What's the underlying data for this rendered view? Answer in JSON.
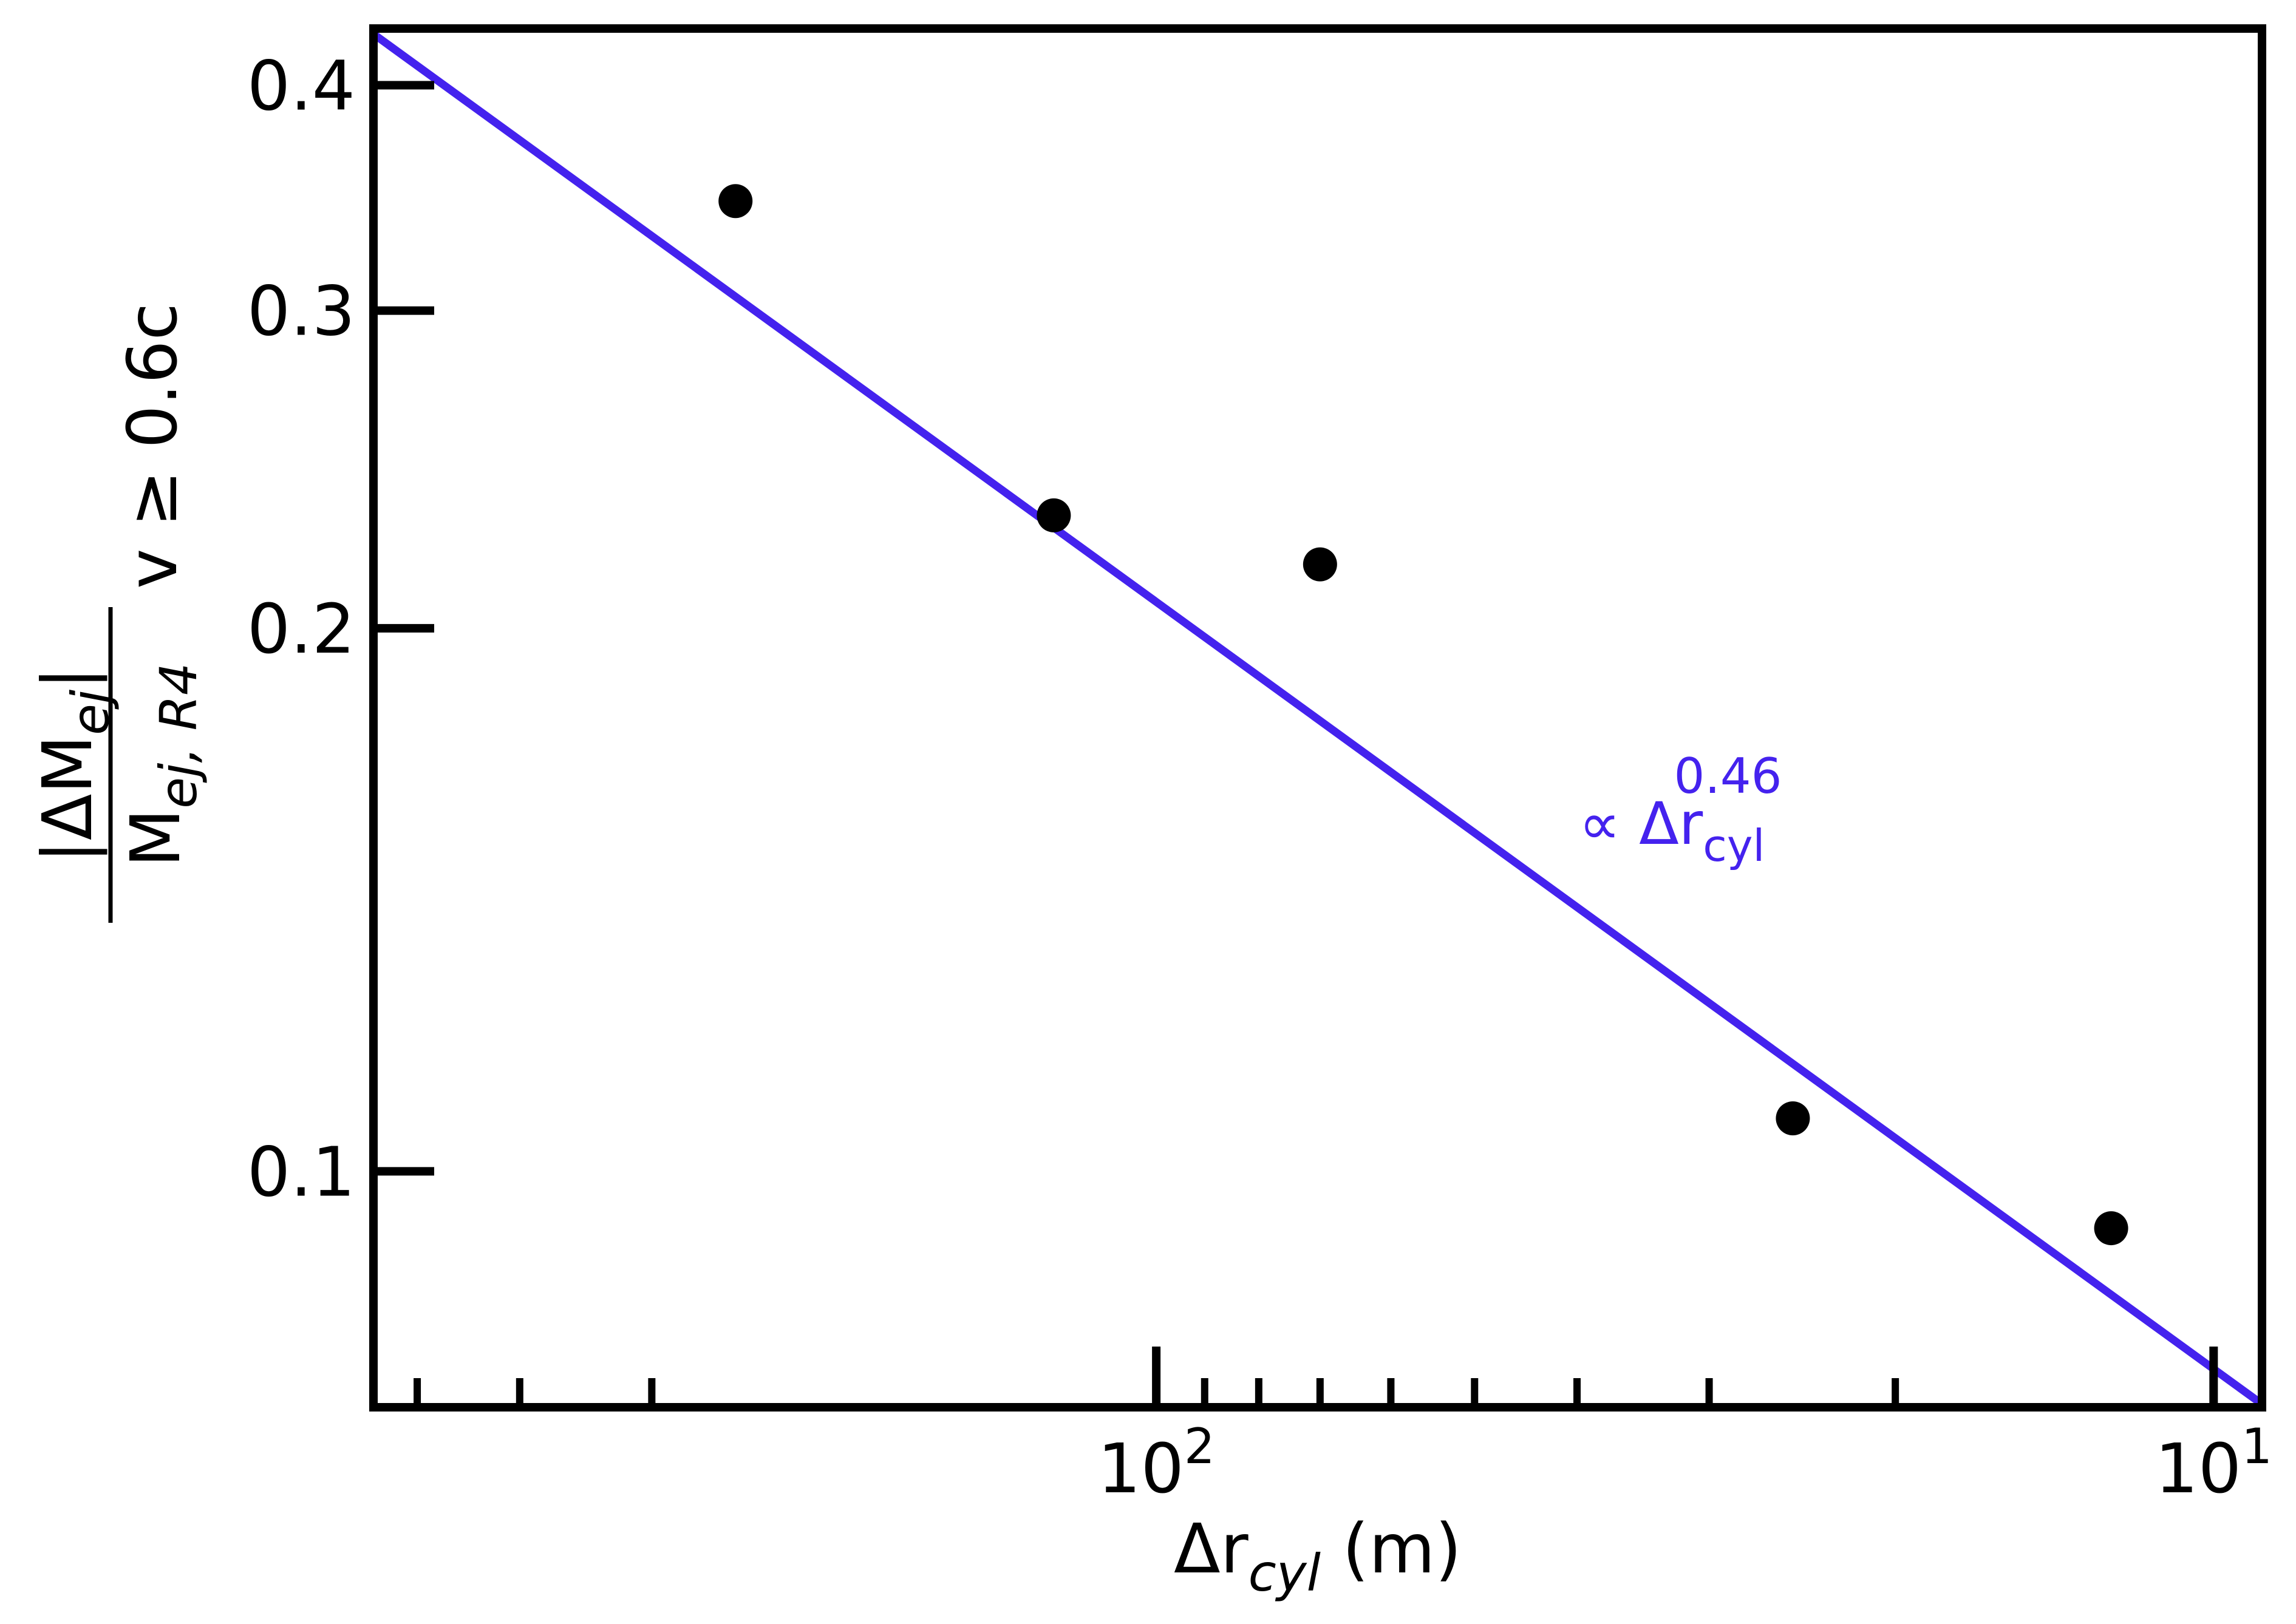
{
  "chart_data": {
    "type": "scatter",
    "xscale": "log",
    "yscale": "log",
    "x_reversed": true,
    "xlim": [
      550,
      9
    ],
    "ylim": [
      0.074,
      0.43
    ],
    "grid": false,
    "xlabel": {
      "base": "Δr",
      "sub": "cyl",
      "suffix": " (m)"
    },
    "ylabel": {
      "numerator": "|ΔM",
      "numerator_sub": "ej",
      "numerator_close": "|",
      "denominator": "M",
      "denominator_sub": "ej, R4",
      "outer_sub": "v ≥ 0.6c"
    },
    "x_major_ticks": [
      {
        "value": 100,
        "base": "10",
        "exp": "2"
      },
      {
        "value": 10,
        "base": "10",
        "exp": "1"
      }
    ],
    "x_minor_ticks": [
      500,
      400,
      300,
      90,
      80,
      70,
      60,
      50,
      40,
      30,
      20
    ],
    "y_ticks": [
      {
        "value": 0.4,
        "label": "0.4"
      },
      {
        "value": 0.3,
        "label": "0.3"
      },
      {
        "value": 0.2,
        "label": "0.2"
      },
      {
        "value": 0.1,
        "label": "0.1"
      }
    ],
    "series": [
      {
        "x": [
          250,
          125,
          70,
          25,
          12.5
        ],
        "y": [
          0.345,
          0.231,
          0.217,
          0.107,
          0.093
        ],
        "color": "#000000",
        "marker": "circle"
      }
    ],
    "fit_line": {
      "color": "#4422ee",
      "exponent": 0.46,
      "x": [
        550,
        9
      ],
      "y": [
        0.427,
        0.0743
      ],
      "annotation": {
        "prefix": "∝ Δr",
        "sub": "cyl",
        "sup": "0.46"
      }
    }
  }
}
